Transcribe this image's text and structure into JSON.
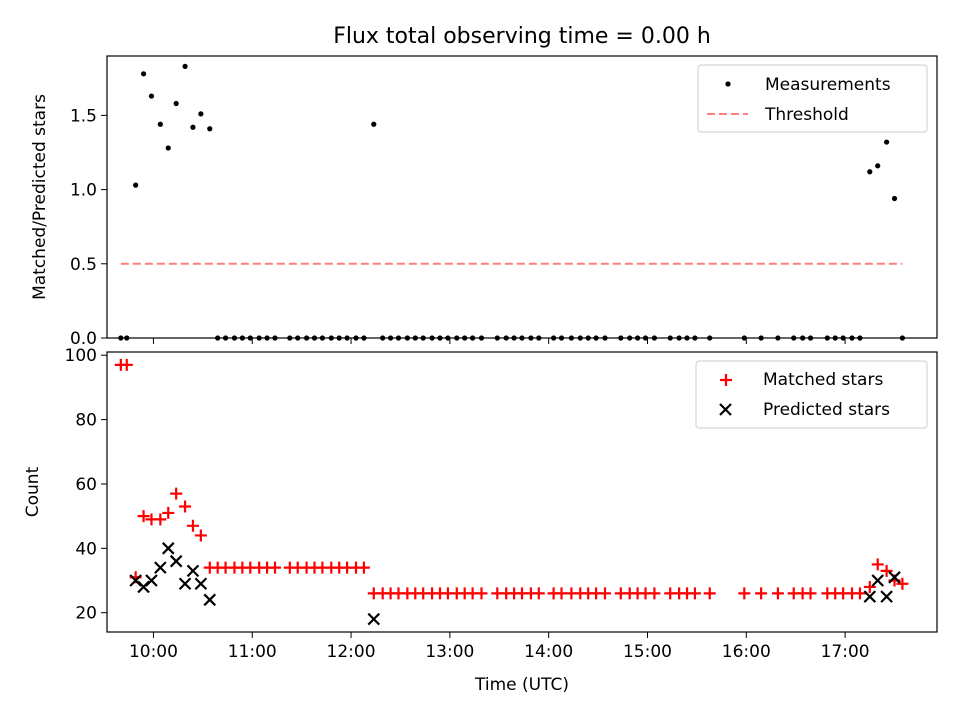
{
  "chart_data": [
    {
      "type": "scatter",
      "title": "Flux total observing time = 0.00 h",
      "xlabel": "",
      "ylabel": "Matched/Predicted stars",
      "xlim": [
        9.53,
        17.93
      ],
      "ylim": [
        0,
        1.9
      ],
      "yticks": [
        0.0,
        0.5,
        1.0,
        1.5
      ],
      "ytick_labels": [
        "0.0",
        "0.5",
        "1.0",
        "1.5"
      ],
      "legend": {
        "position": "top-right",
        "labels": [
          "Measurements",
          "Threshold"
        ]
      },
      "series": [
        {
          "name": "Measurements",
          "marker": "dot",
          "color": "#000000",
          "points": [
            [
              9.67,
              0
            ],
            [
              9.73,
              0
            ],
            [
              9.82,
              1.03
            ],
            [
              9.9,
              1.78
            ],
            [
              9.98,
              1.63
            ],
            [
              10.07,
              1.44
            ],
            [
              10.15,
              1.28
            ],
            [
              10.23,
              1.58
            ],
            [
              10.32,
              1.83
            ],
            [
              10.4,
              1.42
            ],
            [
              10.48,
              1.51
            ],
            [
              10.57,
              1.41
            ],
            [
              10.65,
              0
            ],
            [
              10.73,
              0
            ],
            [
              10.82,
              0
            ],
            [
              10.9,
              0
            ],
            [
              10.98,
              0
            ],
            [
              11.07,
              0
            ],
            [
              11.15,
              0
            ],
            [
              11.23,
              0
            ],
            [
              11.38,
              0
            ],
            [
              11.46,
              0
            ],
            [
              11.55,
              0
            ],
            [
              11.63,
              0
            ],
            [
              11.71,
              0
            ],
            [
              11.8,
              0
            ],
            [
              11.88,
              0
            ],
            [
              11.96,
              0
            ],
            [
              12.05,
              0
            ],
            [
              12.13,
              0
            ],
            [
              12.23,
              1.44
            ],
            [
              12.32,
              0
            ],
            [
              12.4,
              0
            ],
            [
              12.48,
              0
            ],
            [
              12.57,
              0
            ],
            [
              12.65,
              0
            ],
            [
              12.73,
              0
            ],
            [
              12.82,
              0
            ],
            [
              12.9,
              0
            ],
            [
              12.98,
              0
            ],
            [
              13.07,
              0
            ],
            [
              13.15,
              0
            ],
            [
              13.23,
              0
            ],
            [
              13.32,
              0
            ],
            [
              13.48,
              0
            ],
            [
              13.57,
              0
            ],
            [
              13.65,
              0
            ],
            [
              13.73,
              0
            ],
            [
              13.82,
              0
            ],
            [
              13.9,
              0
            ],
            [
              14.05,
              0
            ],
            [
              14.13,
              0
            ],
            [
              14.23,
              0
            ],
            [
              14.32,
              0
            ],
            [
              14.4,
              0
            ],
            [
              14.48,
              0
            ],
            [
              14.57,
              0
            ],
            [
              14.73,
              0
            ],
            [
              14.82,
              0
            ],
            [
              14.9,
              0
            ],
            [
              14.98,
              0
            ],
            [
              15.07,
              0
            ],
            [
              15.23,
              0
            ],
            [
              15.32,
              0
            ],
            [
              15.4,
              0
            ],
            [
              15.48,
              0
            ],
            [
              15.63,
              0
            ],
            [
              15.98,
              0
            ],
            [
              16.15,
              0
            ],
            [
              16.32,
              0
            ],
            [
              16.48,
              0
            ],
            [
              16.57,
              0
            ],
            [
              16.65,
              0
            ],
            [
              16.82,
              0
            ],
            [
              16.9,
              0
            ],
            [
              16.98,
              0
            ],
            [
              17.07,
              0
            ],
            [
              17.15,
              0
            ],
            [
              17.25,
              1.12
            ],
            [
              17.33,
              1.16
            ],
            [
              17.42,
              1.32
            ],
            [
              17.5,
              0.94
            ],
            [
              17.58,
              0
            ]
          ]
        },
        {
          "name": "Threshold",
          "style": "dashed",
          "color": "#ff7f7f",
          "x": [
            9.67,
            17.58
          ],
          "y": [
            0.5,
            0.5
          ]
        }
      ]
    },
    {
      "type": "scatter",
      "title": "",
      "xlabel": "Time (UTC)",
      "ylabel": "Count",
      "xlim": [
        9.53,
        17.93
      ],
      "ylim": [
        14,
        101
      ],
      "yticks": [
        20,
        40,
        60,
        80,
        100
      ],
      "ytick_labels": [
        "20",
        "40",
        "60",
        "80",
        "100"
      ],
      "xticks": [
        10,
        11,
        12,
        13,
        14,
        15,
        16,
        17
      ],
      "xtick_labels": [
        "10:00",
        "11:00",
        "12:00",
        "13:00",
        "14:00",
        "15:00",
        "16:00",
        "17:00"
      ],
      "legend": {
        "position": "top-right",
        "labels": [
          "Matched stars",
          "Predicted stars"
        ]
      },
      "series": [
        {
          "name": "Matched stars",
          "marker": "plus",
          "color": "#ff0000",
          "points": [
            [
              9.67,
              97
            ],
            [
              9.73,
              97
            ],
            [
              9.82,
              31
            ],
            [
              9.9,
              50
            ],
            [
              9.98,
              49
            ],
            [
              10.07,
              49
            ],
            [
              10.15,
              51
            ],
            [
              10.23,
              57
            ],
            [
              10.32,
              53
            ],
            [
              10.4,
              47
            ],
            [
              10.48,
              44
            ],
            [
              10.57,
              34
            ],
            [
              10.65,
              34
            ],
            [
              10.73,
              34
            ],
            [
              10.82,
              34
            ],
            [
              10.9,
              34
            ],
            [
              10.98,
              34
            ],
            [
              11.07,
              34
            ],
            [
              11.15,
              34
            ],
            [
              11.23,
              34
            ],
            [
              11.38,
              34
            ],
            [
              11.46,
              34
            ],
            [
              11.55,
              34
            ],
            [
              11.63,
              34
            ],
            [
              11.71,
              34
            ],
            [
              11.8,
              34
            ],
            [
              11.88,
              34
            ],
            [
              11.96,
              34
            ],
            [
              12.05,
              34
            ],
            [
              12.13,
              34
            ],
            [
              12.23,
              26
            ],
            [
              12.32,
              26
            ],
            [
              12.4,
              26
            ],
            [
              12.48,
              26
            ],
            [
              12.57,
              26
            ],
            [
              12.65,
              26
            ],
            [
              12.73,
              26
            ],
            [
              12.82,
              26
            ],
            [
              12.9,
              26
            ],
            [
              12.98,
              26
            ],
            [
              13.07,
              26
            ],
            [
              13.15,
              26
            ],
            [
              13.23,
              26
            ],
            [
              13.32,
              26
            ],
            [
              13.48,
              26
            ],
            [
              13.57,
              26
            ],
            [
              13.65,
              26
            ],
            [
              13.73,
              26
            ],
            [
              13.82,
              26
            ],
            [
              13.9,
              26
            ],
            [
              14.05,
              26
            ],
            [
              14.13,
              26
            ],
            [
              14.23,
              26
            ],
            [
              14.32,
              26
            ],
            [
              14.4,
              26
            ],
            [
              14.48,
              26
            ],
            [
              14.57,
              26
            ],
            [
              14.73,
              26
            ],
            [
              14.82,
              26
            ],
            [
              14.9,
              26
            ],
            [
              14.98,
              26
            ],
            [
              15.07,
              26
            ],
            [
              15.23,
              26
            ],
            [
              15.32,
              26
            ],
            [
              15.4,
              26
            ],
            [
              15.48,
              26
            ],
            [
              15.63,
              26
            ],
            [
              15.98,
              26
            ],
            [
              16.15,
              26
            ],
            [
              16.32,
              26
            ],
            [
              16.48,
              26
            ],
            [
              16.57,
              26
            ],
            [
              16.65,
              26
            ],
            [
              16.82,
              26
            ],
            [
              16.9,
              26
            ],
            [
              16.98,
              26
            ],
            [
              17.07,
              26
            ],
            [
              17.15,
              26
            ],
            [
              17.25,
              28
            ],
            [
              17.33,
              35
            ],
            [
              17.42,
              33
            ],
            [
              17.5,
              30
            ],
            [
              17.58,
              29
            ]
          ]
        },
        {
          "name": "Predicted stars",
          "marker": "x",
          "color": "#000000",
          "points": [
            [
              9.82,
              30
            ],
            [
              9.9,
              28
            ],
            [
              9.98,
              30
            ],
            [
              10.07,
              34
            ],
            [
              10.15,
              40
            ],
            [
              10.23,
              36
            ],
            [
              10.32,
              29
            ],
            [
              10.4,
              33
            ],
            [
              10.48,
              29
            ],
            [
              10.57,
              24
            ],
            [
              12.23,
              18
            ],
            [
              17.25,
              25
            ],
            [
              17.33,
              30
            ],
            [
              17.42,
              25
            ],
            [
              17.5,
              31
            ]
          ]
        }
      ]
    }
  ]
}
